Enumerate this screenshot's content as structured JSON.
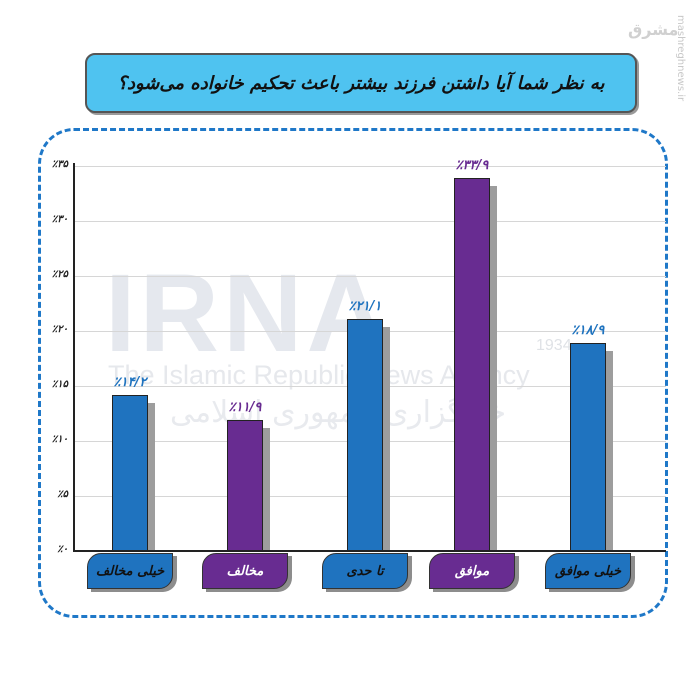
{
  "title": "به نظر شما آیا داشتن فرزند بیشتر باعث تحکیم خانواده می‌شود؟",
  "watermarks": {
    "side_text": "mashreghnews.ir",
    "logo": "مشرق",
    "brand": "IRNA",
    "brand_en": "The Islamic Republic News Agency",
    "brand_fa": "خبرگزاری جمهوری اسلامی",
    "year": "1934"
  },
  "colors": {
    "blue": "#1f73bf",
    "purple": "#682c91",
    "title_bg": "#4fc3f0",
    "frame": "#1f78c8"
  },
  "y_ticks": [
    "٪۰",
    "٪۵",
    "٪۱۰",
    "٪۱۵",
    "٪۲۰",
    "٪۲۵",
    "٪۳۰",
    "٪۳۵"
  ],
  "bars": [
    {
      "label": "خیلی مخالف",
      "value_label": "٪۱۴/۲",
      "value": 14.2,
      "color": "blue"
    },
    {
      "label": "مخالف",
      "value_label": "٪۱۱/۹",
      "value": 11.9,
      "color": "purple"
    },
    {
      "label": "تا حدی",
      "value_label": "٪۲۱/۱",
      "value": 21.1,
      "color": "blue"
    },
    {
      "label": "موافق",
      "value_label": "٪۳۳/۹",
      "value": 33.9,
      "color": "purple"
    },
    {
      "label": "خیلی موافق",
      "value_label": "٪۱۸/۹",
      "value": 18.9,
      "color": "blue"
    }
  ],
  "chart_data": {
    "type": "bar",
    "title": "به نظر شما آیا داشتن فرزند بیشتر باعث تحکیم خانواده می‌شود؟",
    "categories": [
      "خیلی مخالف",
      "مخالف",
      "تا حدی",
      "موافق",
      "خیلی موافق"
    ],
    "values": [
      14.2,
      11.9,
      21.1,
      33.9,
      18.9
    ],
    "value_labels": [
      "٪۱۴/۲",
      "٪۱۱/۹",
      "٪۲۱/۱",
      "٪۳۳/۹",
      "٪۱۸/۹"
    ],
    "bar_colors": [
      "#1f73bf",
      "#682c91",
      "#1f73bf",
      "#682c91",
      "#1f73bf"
    ],
    "xlabel": "",
    "ylabel": "",
    "ylim": [
      0,
      35
    ],
    "y_tick_values": [
      0,
      5,
      10,
      15,
      20,
      25,
      30,
      35
    ],
    "y_tick_labels": [
      "٪۰",
      "٪۵",
      "٪۱۰",
      "٪۱۵",
      "٪۲۰",
      "٪۲۵",
      "٪۳۰",
      "٪۳۵"
    ],
    "grid": true,
    "legend": "none"
  }
}
